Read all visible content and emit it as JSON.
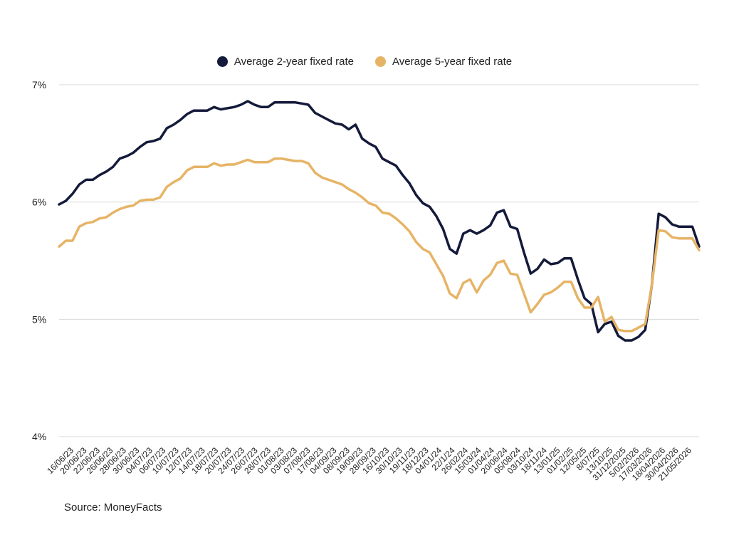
{
  "chart_data": {
    "type": "line",
    "xlabel": "",
    "ylabel": "",
    "ylim": [
      4,
      7
    ],
    "yticks": [
      {
        "value": 7,
        "label": "7%"
      },
      {
        "value": 6,
        "label": "6%"
      },
      {
        "value": 5,
        "label": "5%"
      },
      {
        "value": 4,
        "label": "4%"
      }
    ],
    "grid": "horizontal",
    "legend_position": "top-center",
    "x_tick_labels": [
      "16/06/23",
      "20/06/23",
      "22/06/23",
      "26/06/23",
      "28/06/23",
      "30/06/23",
      "04/07/23",
      "06/07/23",
      "10/07/23",
      "12/07/23",
      "14/07/23",
      "18/07/23",
      "20/07/23",
      "24/07/23",
      "26/07/23",
      "28/07/23",
      "01/08/23",
      "03/08/23",
      "07/08/23",
      "17/08/23",
      "04/09/23",
      "08/09/23",
      "19/09/23",
      "28/09/23",
      "16/10/23",
      "30/10/23",
      "19/11/23",
      "18/12/23",
      "04/01/24",
      "22/1/24",
      "26/02/24",
      "15/03/24",
      "01/04/24",
      "20/06/24",
      "05/08/24",
      "03/10/24",
      "18/11/24",
      "13/01/25",
      "01/02/25",
      "12/05/25",
      "8/07/25",
      "13/10/25",
      "31/12/2025",
      "5/02/2026",
      "17/03/2026",
      "18/04/2026",
      "30/04/2026",
      "21/05/2026"
    ],
    "series": [
      {
        "name": "Average 2-year fixed rate",
        "color": "#141a3a",
        "values": [
          5.98,
          6.01,
          6.07,
          6.15,
          6.19,
          6.19,
          6.23,
          6.26,
          6.3,
          6.37,
          6.39,
          6.42,
          6.47,
          6.51,
          6.52,
          6.54,
          6.63,
          6.66,
          6.7,
          6.75,
          6.78,
          6.78,
          6.78,
          6.81,
          6.79,
          6.8,
          6.81,
          6.83,
          6.86,
          6.83,
          6.81,
          6.81,
          6.85,
          6.85,
          6.85,
          6.85,
          6.84,
          6.83,
          6.76,
          6.73,
          6.7,
          6.67,
          6.66,
          6.62,
          6.66,
          6.54,
          6.5,
          6.47,
          6.37,
          6.34,
          6.31,
          6.23,
          6.16,
          6.06,
          5.99,
          5.96,
          5.88,
          5.77,
          5.6,
          5.56,
          5.73,
          5.76,
          5.73,
          5.76,
          5.8,
          5.91,
          5.93,
          5.79,
          5.77,
          5.57,
          5.39,
          5.43,
          5.51,
          5.47,
          5.48,
          5.52,
          5.52,
          5.34,
          5.18,
          5.13,
          4.89,
          4.96,
          4.98,
          4.86,
          4.82,
          4.82,
          4.85,
          4.91,
          5.3,
          5.9,
          5.87,
          5.81,
          5.79,
          5.79,
          5.79,
          5.62
        ]
      },
      {
        "name": "Average 5-year fixed rate",
        "color": "#e6b466",
        "values": [
          5.62,
          5.67,
          5.67,
          5.79,
          5.82,
          5.83,
          5.86,
          5.87,
          5.91,
          5.94,
          5.96,
          5.97,
          6.01,
          6.02,
          6.02,
          6.04,
          6.13,
          6.17,
          6.2,
          6.27,
          6.3,
          6.3,
          6.3,
          6.33,
          6.31,
          6.32,
          6.32,
          6.34,
          6.36,
          6.34,
          6.34,
          6.34,
          6.37,
          6.37,
          6.36,
          6.35,
          6.35,
          6.33,
          6.25,
          6.21,
          6.19,
          6.17,
          6.15,
          6.11,
          6.08,
          6.04,
          5.99,
          5.97,
          5.91,
          5.9,
          5.86,
          5.81,
          5.75,
          5.66,
          5.6,
          5.57,
          5.47,
          5.37,
          5.22,
          5.18,
          5.31,
          5.34,
          5.23,
          5.33,
          5.38,
          5.48,
          5.5,
          5.39,
          5.38,
          5.22,
          5.06,
          5.13,
          5.21,
          5.23,
          5.27,
          5.32,
          5.32,
          5.18,
          5.1,
          5.1,
          5.19,
          4.98,
          5.02,
          4.91,
          4.9,
          4.9,
          4.93,
          4.96,
          5.3,
          5.76,
          5.75,
          5.7,
          5.69,
          5.69,
          5.69,
          5.59
        ]
      }
    ]
  },
  "legend": {
    "items": [
      {
        "label": "Average 2-year fixed rate",
        "color": "#141a3a"
      },
      {
        "label": "Average 5-year fixed rate",
        "color": "#e6b466"
      }
    ]
  },
  "source": "Source: MoneyFacts"
}
